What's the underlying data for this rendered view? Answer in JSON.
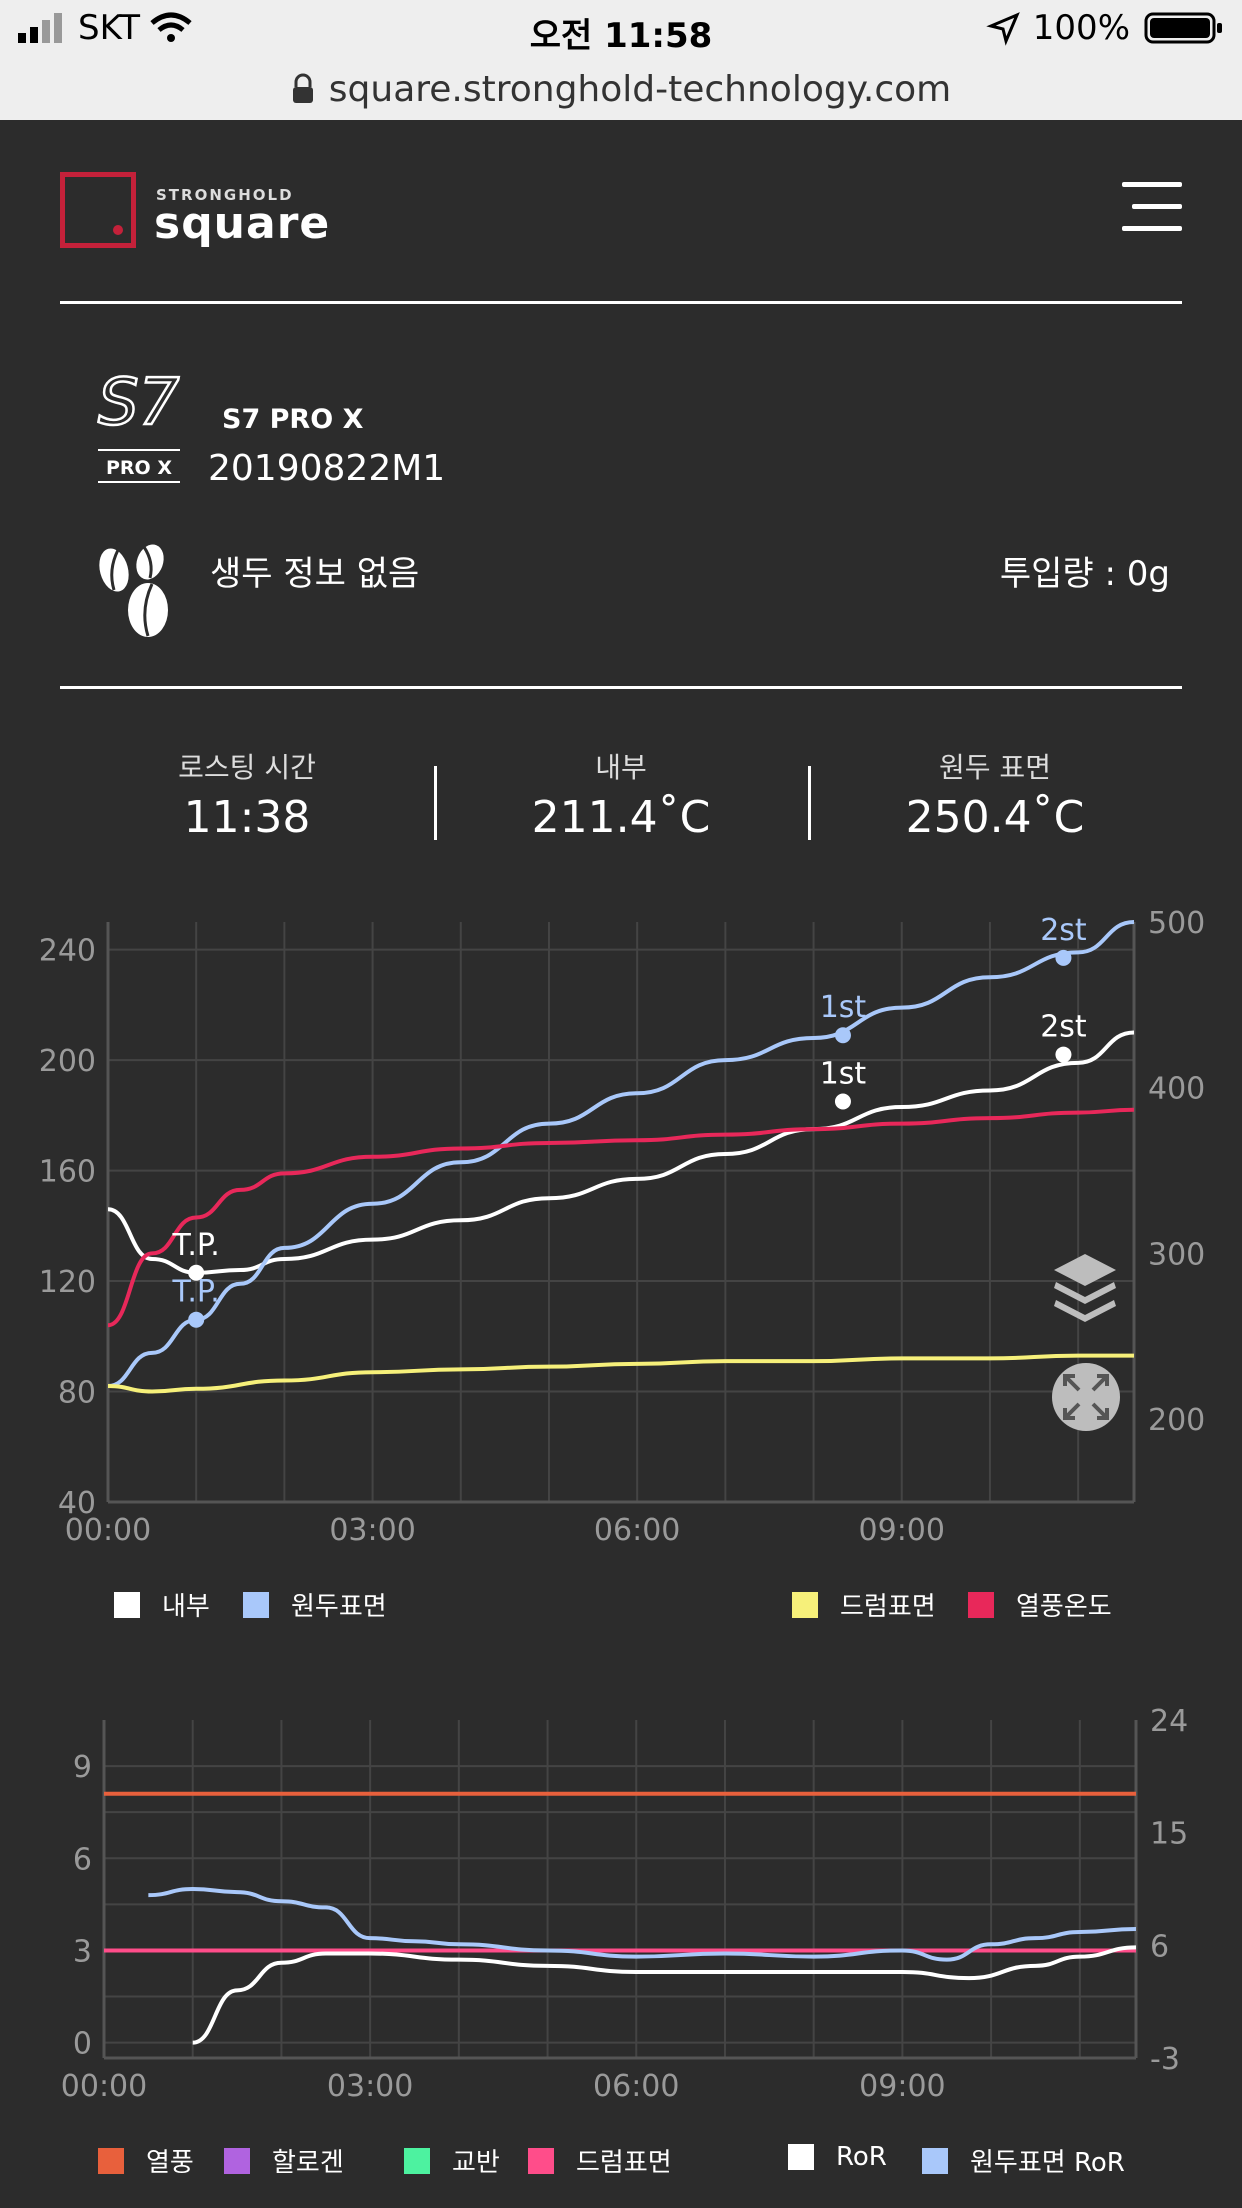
{
  "status_bar": {
    "carrier": "SKT",
    "time": "오전 11:58",
    "battery": "100%"
  },
  "url_bar": {
    "url": "square.stronghold-technology.com"
  },
  "brand": {
    "small": "STRONGHOLD",
    "big": "square",
    "accent": "#c4213a"
  },
  "device": {
    "model": "S7 PRO X",
    "roast_id": "20190822M1",
    "logo_text": "S7",
    "logo_sub": "PRO X"
  },
  "bean": {
    "info": "생두 정보 없음",
    "input_amount": "투입량 : 0g"
  },
  "stats": [
    {
      "label": "로스팅 시간",
      "value": "11:38"
    },
    {
      "label": "내부",
      "value": "211.4˚C"
    },
    {
      "label": "원두 표면",
      "value": "250.4˚C"
    }
  ],
  "chart_data": [
    {
      "type": "line",
      "x_ticks": [
        "00:00",
        "03:00",
        "06:00",
        "09:00"
      ],
      "xlim": [
        "00:00",
        "11:38"
      ],
      "y_left_ticks": [
        40,
        80,
        120,
        160,
        200,
        240
      ],
      "ylim_left": [
        40,
        250
      ],
      "y_right_ticks": [
        200,
        300,
        400,
        500
      ],
      "ylim_right": [
        150,
        500
      ],
      "grid": true,
      "series": [
        {
          "name": "내부",
          "color": "#ffffff",
          "axis": "left",
          "x": [
            "00:00",
            "00:30",
            "01:00",
            "01:30",
            "02:00",
            "03:00",
            "04:00",
            "05:00",
            "06:00",
            "07:00",
            "08:00",
            "09:00",
            "10:00",
            "11:00",
            "11:38"
          ],
          "values": [
            146,
            128,
            123,
            124,
            128,
            135,
            142,
            150,
            157,
            166,
            175,
            183,
            189,
            199,
            210
          ]
        },
        {
          "name": "원두표면",
          "color": "#a9c8fa",
          "axis": "left",
          "x": [
            "00:00",
            "00:30",
            "01:00",
            "01:30",
            "02:00",
            "03:00",
            "04:00",
            "05:00",
            "06:00",
            "07:00",
            "08:00",
            "09:00",
            "10:00",
            "11:00",
            "11:38"
          ],
          "values": [
            82,
            94,
            106,
            119,
            132,
            148,
            163,
            177,
            188,
            200,
            208,
            219,
            230,
            239,
            250
          ]
        },
        {
          "name": "드럼표면",
          "color": "#f6f07a",
          "axis": "left",
          "x": [
            "00:00",
            "00:30",
            "01:00",
            "02:00",
            "03:00",
            "04:00",
            "05:00",
            "06:00",
            "07:00",
            "08:00",
            "09:00",
            "10:00",
            "11:00",
            "11:38"
          ],
          "values": [
            82,
            80,
            81,
            84,
            87,
            88,
            89,
            90,
            91,
            91,
            92,
            92,
            93,
            93
          ]
        },
        {
          "name": "열풍온도",
          "color": "#e8285a",
          "axis": "left",
          "x": [
            "00:00",
            "00:30",
            "01:00",
            "01:30",
            "02:00",
            "03:00",
            "04:00",
            "05:00",
            "06:00",
            "07:00",
            "08:00",
            "09:00",
            "10:00",
            "11:00",
            "11:38"
          ],
          "values": [
            104,
            130,
            143,
            153,
            159,
            165,
            168,
            170,
            171,
            173,
            175,
            177,
            179,
            181,
            182
          ]
        }
      ],
      "annotations": [
        {
          "text": "T.P.",
          "series": "내부",
          "x": "01:00",
          "y": 123
        },
        {
          "text": "T.P.",
          "series": "원두표면",
          "x": "01:00",
          "y": 106
        },
        {
          "text": "1st",
          "series": "원두표면",
          "x": "08:20",
          "y": 209
        },
        {
          "text": "1st",
          "series": "내부",
          "x": "08:20",
          "y": 185
        },
        {
          "text": "2st",
          "series": "원두표면",
          "x": "10:50",
          "y": 237
        },
        {
          "text": "2st",
          "series": "내부",
          "x": "10:50",
          "y": 202
        }
      ],
      "legend_items": [
        {
          "label": "내부",
          "color": "#ffffff"
        },
        {
          "label": "원두표면",
          "color": "#a9c8fa"
        },
        {
          "label": "드럼표면",
          "color": "#f6f07a"
        },
        {
          "label": "열풍온도",
          "color": "#e8285a"
        }
      ]
    },
    {
      "type": "line",
      "x_ticks": [
        "00:00",
        "03:00",
        "06:00",
        "09:00"
      ],
      "xlim": [
        "00:00",
        "11:38"
      ],
      "y_left_ticks": [
        0,
        3,
        6,
        9
      ],
      "ylim_left": [
        -0.5,
        10.5
      ],
      "y_right_ticks": [
        -3,
        6,
        15,
        24
      ],
      "ylim_right": [
        -3,
        24
      ],
      "grid": true,
      "series": [
        {
          "name": "열풍",
          "color": "#e8603c",
          "axis": "left",
          "x": [
            "00:00",
            "11:38"
          ],
          "values": [
            8.1,
            8.1
          ]
        },
        {
          "name": "드럼표면",
          "color": "#ff4d8a",
          "axis": "left",
          "x": [
            "00:00",
            "11:38"
          ],
          "values": [
            3.0,
            3.0
          ]
        },
        {
          "name": "RoR",
          "color": "#ffffff",
          "axis": "left",
          "x": [
            "01:00",
            "01:30",
            "02:00",
            "02:30",
            "03:00",
            "04:00",
            "05:00",
            "06:00",
            "07:00",
            "08:00",
            "09:00",
            "09:45",
            "10:30",
            "11:00",
            "11:38"
          ],
          "values": [
            0,
            1.7,
            2.6,
            2.9,
            2.9,
            2.7,
            2.5,
            2.3,
            2.3,
            2.3,
            2.3,
            2.1,
            2.5,
            2.8,
            3.1
          ]
        },
        {
          "name": "원두표면 RoR",
          "color": "#a9c8fa",
          "axis": "left",
          "x": [
            "00:30",
            "01:00",
            "01:30",
            "02:00",
            "02:30",
            "03:00",
            "03:30",
            "04:00",
            "05:00",
            "06:00",
            "07:00",
            "08:00",
            "09:00",
            "09:30",
            "10:00",
            "10:30",
            "11:00",
            "11:38"
          ],
          "values": [
            4.8,
            5.0,
            4.9,
            4.6,
            4.4,
            3.4,
            3.3,
            3.2,
            3.0,
            2.8,
            2.9,
            2.8,
            3.0,
            2.7,
            3.2,
            3.4,
            3.6,
            3.7
          ]
        }
      ],
      "legend_items": [
        {
          "label": "열풍",
          "color": "#e8603c"
        },
        {
          "label": "할로겐",
          "color": "#b063e0"
        },
        {
          "label": "교반",
          "color": "#4df2a0"
        },
        {
          "label": "드럼표면",
          "color": "#ff4d8a"
        },
        {
          "label": "RoR",
          "color": "#ffffff"
        },
        {
          "label": "원두표면 RoR",
          "color": "#a9c8fa"
        }
      ]
    }
  ],
  "icons": {
    "layers": "layers-icon",
    "expand": "expand-icon",
    "menu": "hamburger-menu-icon",
    "lock": "lock-icon"
  }
}
